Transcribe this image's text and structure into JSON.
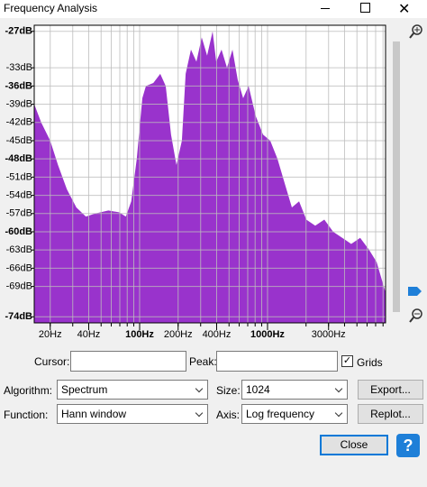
{
  "window": {
    "title": "Frequency Analysis"
  },
  "chart_data": {
    "type": "area",
    "color": "#9933cc",
    "log_x": true,
    "grid": true,
    "x": [
      15,
      17,
      20,
      23,
      27,
      32,
      38,
      45,
      57,
      69,
      78,
      86,
      95,
      105,
      112,
      128,
      145,
      160,
      176,
      194,
      214,
      229,
      252,
      278,
      306,
      337,
      372,
      397,
      437,
      482,
      532,
      585,
      645,
      711,
      810,
      922,
      1050,
      1196,
      1361,
      1550,
      1765,
      2010,
      2360,
      2780,
      3260,
      3840,
      4510,
      5300,
      6230,
      7130,
      7850,
      8370
    ],
    "values": [
      -39,
      -42,
      -45,
      -49,
      -53,
      -56,
      -57.5,
      -57,
      -56.5,
      -56.8,
      -57.5,
      -55,
      -48,
      -38,
      -36,
      -35.5,
      -34,
      -36,
      -44,
      -49,
      -45,
      -34,
      -30,
      -32,
      -28,
      -31,
      -27,
      -32,
      -30,
      -33,
      -30,
      -35,
      -38,
      -36,
      -41,
      -44,
      -45,
      -48,
      -52,
      -56,
      -55,
      -58,
      -59,
      -58,
      -60,
      -61,
      -62,
      -61,
      -63,
      -65,
      -68,
      -70
    ],
    "xlim": [
      15,
      8370
    ],
    "ylim": [
      -75,
      -26
    ],
    "xticks": [
      {
        "value": 20,
        "label": "20Hz"
      },
      {
        "value": 40,
        "label": "40Hz"
      },
      {
        "value": 100,
        "label": "100Hz",
        "bold": true
      },
      {
        "value": 200,
        "label": "200Hz"
      },
      {
        "value": 400,
        "label": "400Hz"
      },
      {
        "value": 1000,
        "label": "1000Hz",
        "bold": true
      },
      {
        "value": 3000,
        "label": "3000Hz"
      }
    ],
    "x_grid": [
      20,
      30,
      40,
      50,
      60,
      70,
      80,
      90,
      100,
      200,
      300,
      400,
      500,
      600,
      700,
      800,
      900,
      1000,
      2000,
      3000,
      4000,
      5000,
      6000,
      7000,
      8000
    ],
    "yticks": [
      {
        "value": -27,
        "label": "-27dB",
        "bold": true
      },
      {
        "value": -33,
        "label": "-33dB"
      },
      {
        "value": -36,
        "label": "-36dB",
        "bold": true
      },
      {
        "value": -39,
        "label": "-39dB"
      },
      {
        "value": -42,
        "label": "-42dB"
      },
      {
        "value": -45,
        "label": "-45dB"
      },
      {
        "value": -48,
        "label": "-48dB",
        "bold": true
      },
      {
        "value": -51,
        "label": "-51dB"
      },
      {
        "value": -54,
        "label": "-54dB"
      },
      {
        "value": -57,
        "label": "-57dB"
      },
      {
        "value": -60,
        "label": "-60dB",
        "bold": true
      },
      {
        "value": -63,
        "label": "-63dB"
      },
      {
        "value": -66,
        "label": "-66dB"
      },
      {
        "value": -69,
        "label": "-69dB"
      },
      {
        "value": -74,
        "label": "-74dB",
        "bold": true
      }
    ]
  },
  "controls": {
    "cursor_label": "Cursor:",
    "peak_label": "Peak:",
    "grids_label": "Grids",
    "grids_checked": true,
    "algorithm_label": "Algorithm:",
    "algorithm": "Spectrum",
    "size_label": "Size:",
    "size": "1024",
    "function_label": "Function:",
    "function": "Hann window",
    "axis_label": "Axis:",
    "axis": "Log frequency",
    "export": "Export...",
    "replot": "Replot...",
    "close": "Close"
  }
}
